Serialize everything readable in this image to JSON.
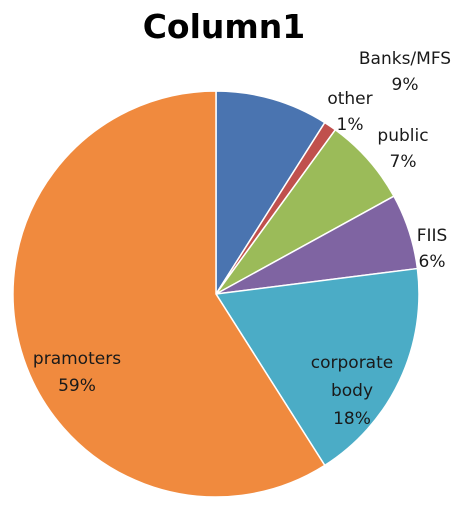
{
  "chart_data": {
    "type": "pie",
    "title": "Column1",
    "slices": [
      {
        "label": "Banks/MFS",
        "percent_label": "9%",
        "value": 9,
        "color": "#4a74b0"
      },
      {
        "label": "other",
        "percent_label": "1%",
        "value": 1,
        "color": "#c0504d"
      },
      {
        "label": "public",
        "percent_label": "7%",
        "value": 7,
        "color": "#9bbb59"
      },
      {
        "label": "FIIS",
        "percent_label": "6%",
        "value": 6,
        "color": "#7f64a2"
      },
      {
        "label": "corporate body",
        "percent_label": "18%",
        "value": 18,
        "color": "#4bacc6"
      },
      {
        "label": "pramoters",
        "percent_label": "59%",
        "value": 59,
        "color": "#f08a3e"
      }
    ],
    "legend": "none",
    "start": "12 o'clock",
    "direction": "clockwise"
  }
}
